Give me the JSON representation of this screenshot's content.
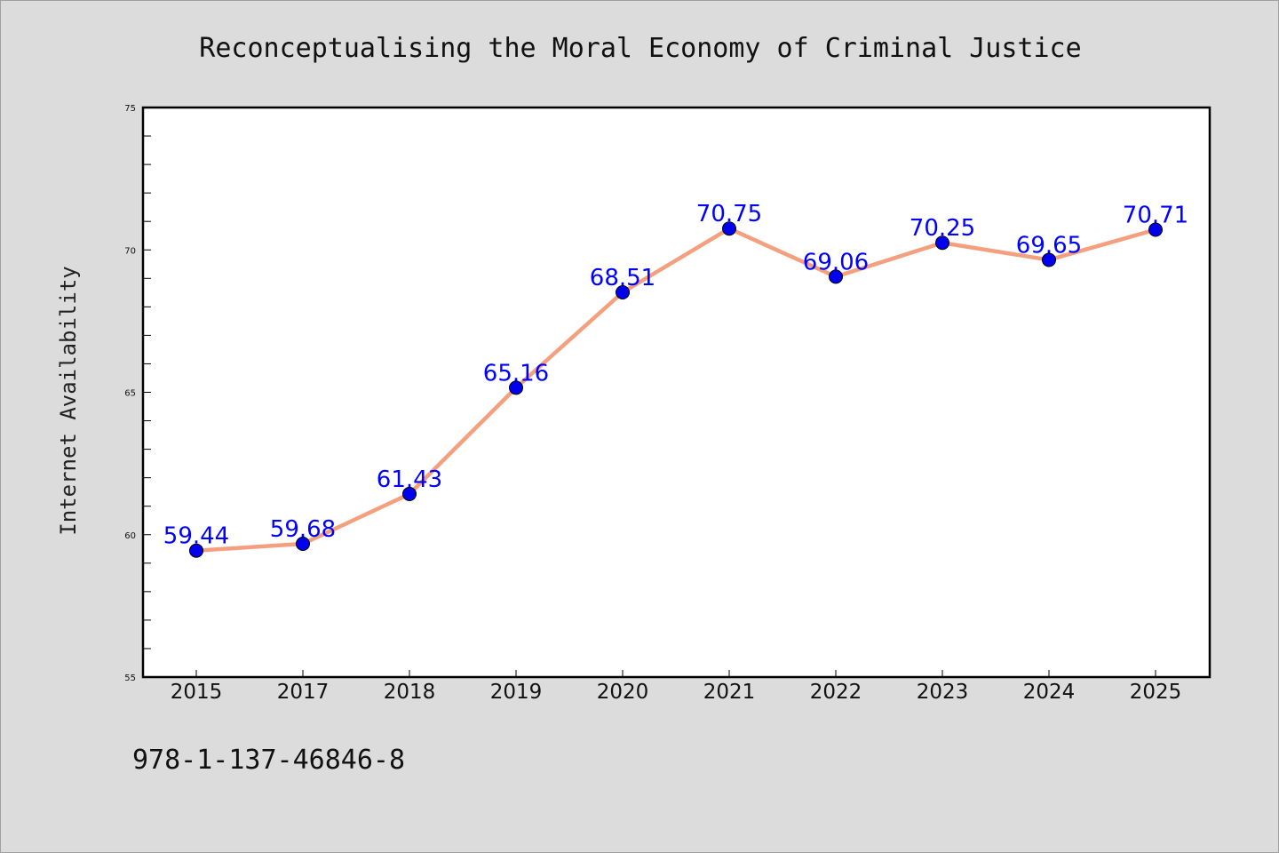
{
  "chart_data": {
    "type": "line",
    "title": "Reconceptualising the Moral Economy of Criminal Justice",
    "xlabel": "",
    "ylabel": "Internet Availability",
    "categories": [
      "2015",
      "2017",
      "2018",
      "2019",
      "2020",
      "2021",
      "2022",
      "2023",
      "2024",
      "2025"
    ],
    "series": [
      {
        "values": [
          59.44,
          59.68,
          61.43,
          65.16,
          68.51,
          70.75,
          69.06,
          70.25,
          69.65,
          70.71
        ]
      }
    ],
    "data_labels": [
      "59.44",
      "59.68",
      "61.43",
      "65.16",
      "68.51",
      "70.75",
      "69.06",
      "70.25",
      "69.65",
      "70.71"
    ],
    "ylim": [
      55,
      75
    ],
    "yticks": [
      "55",
      "60",
      "65",
      "70",
      "75"
    ],
    "grid": false,
    "legend": "none",
    "colors": {
      "line": "#f4a07e",
      "marker": "#0000ee",
      "label": "#0000ff",
      "background": "#dcdcdc",
      "plot_background": "#ffffff"
    },
    "footer_text": "978-1-137-46846-8"
  }
}
